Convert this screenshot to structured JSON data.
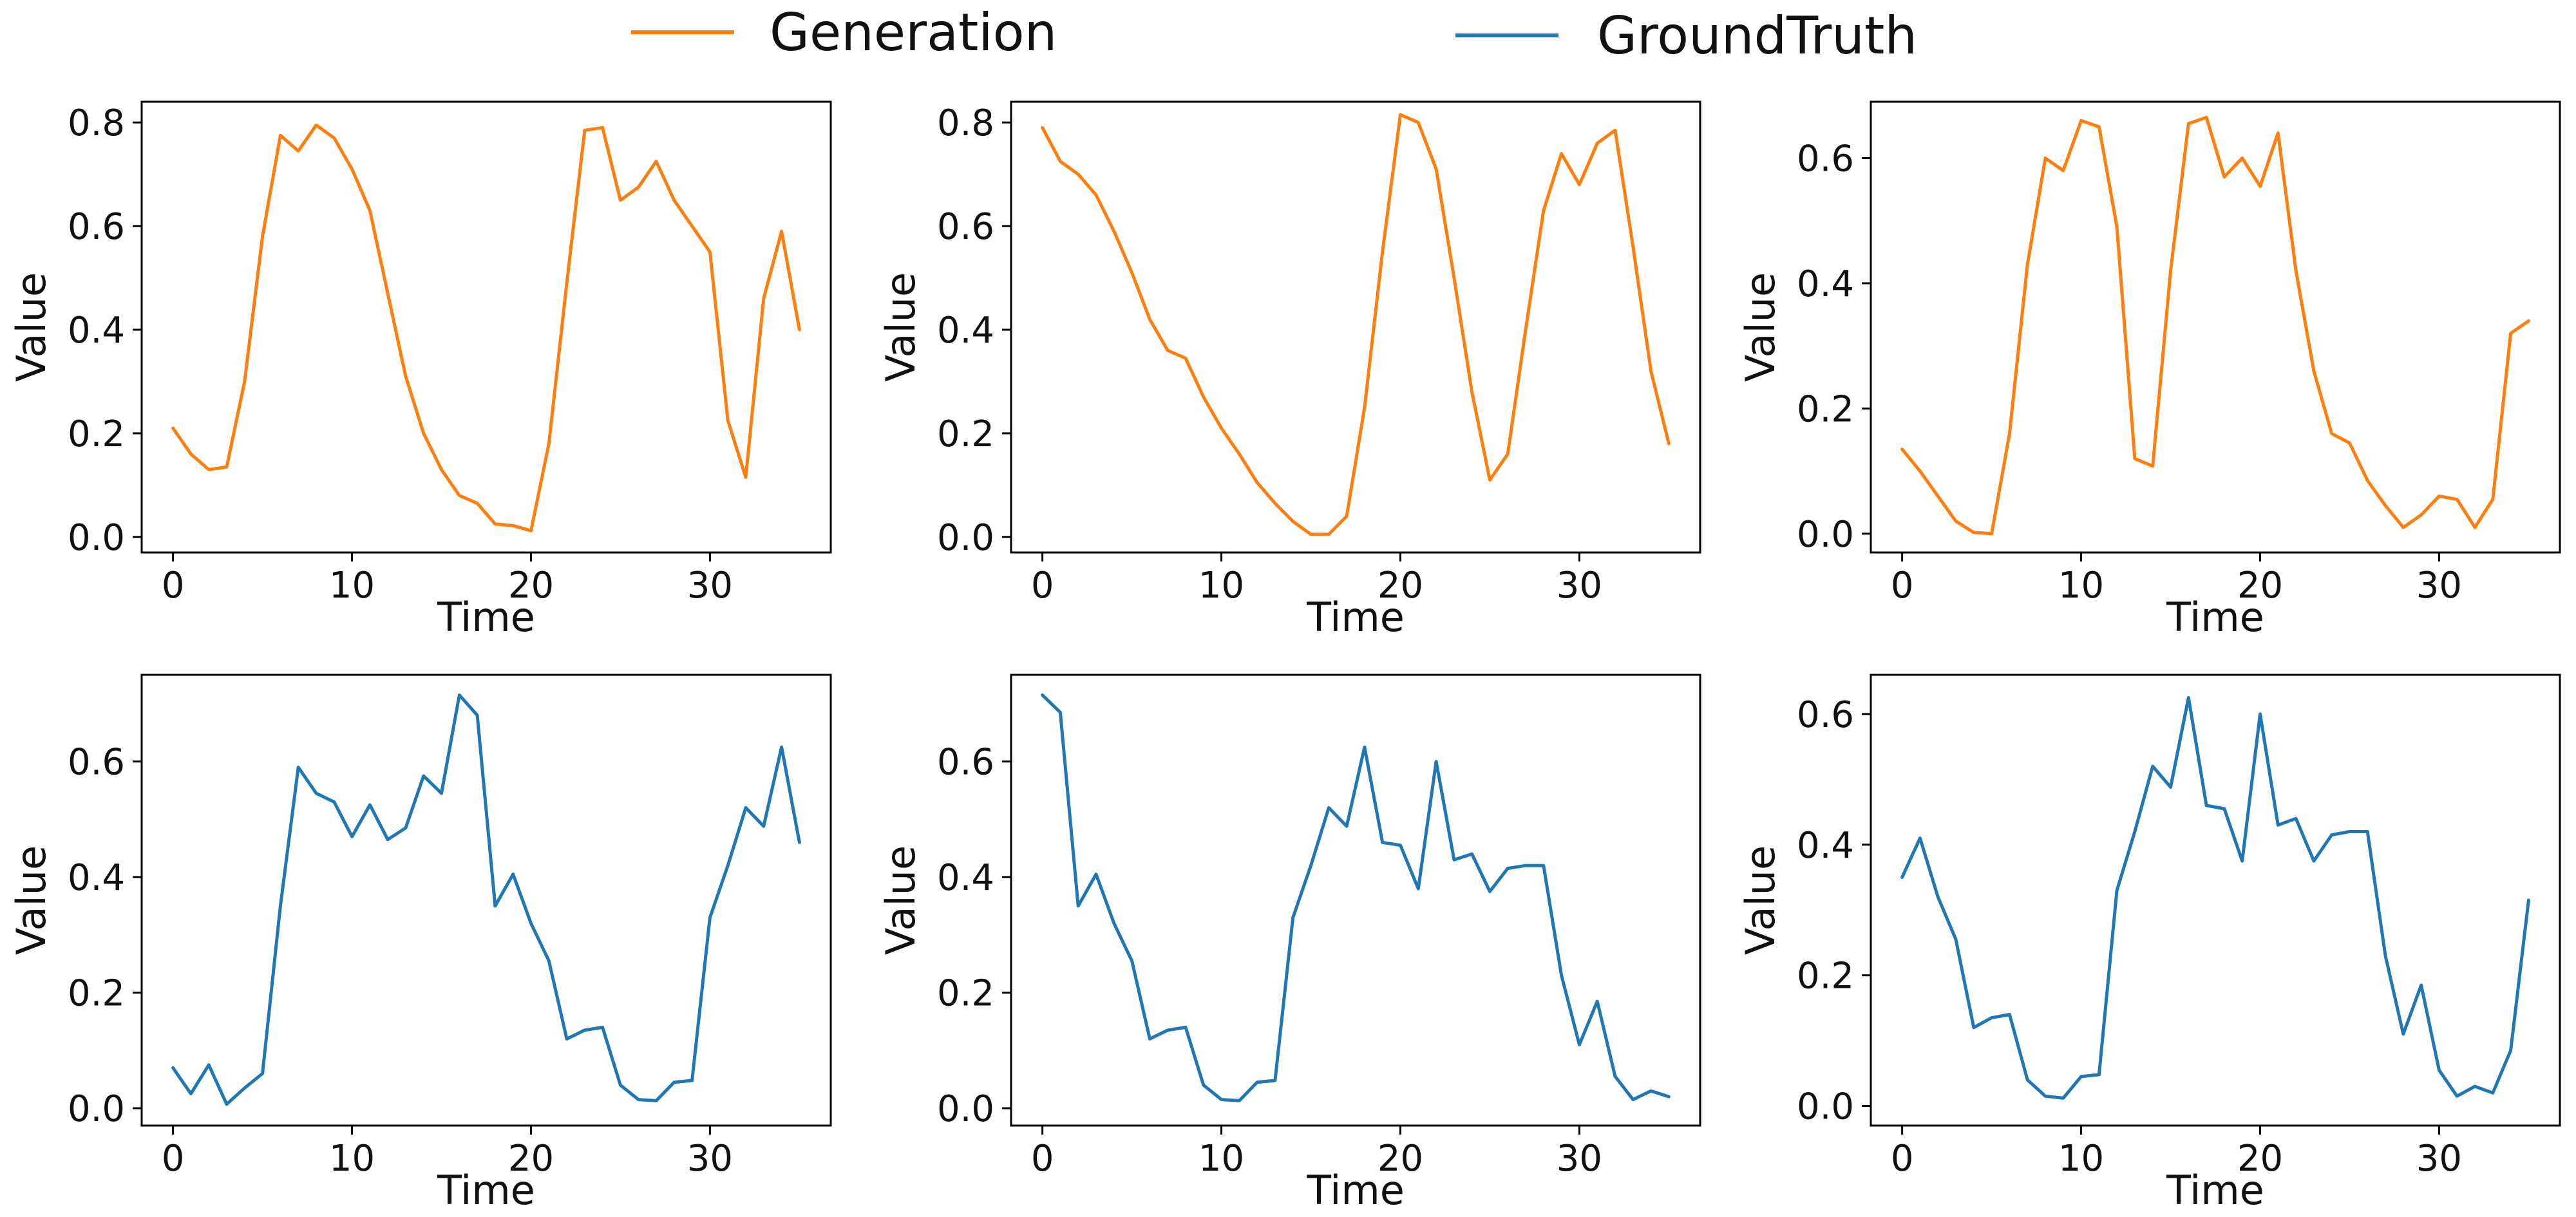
{
  "legend": {
    "generation_label": "Generation",
    "groundtruth_label": "GroundTruth",
    "generation_color": "#ff7f0e",
    "groundtruth_color": "#1f77b4"
  },
  "chart_data": [
    {
      "type": "line",
      "series": [
        {
          "name": "Generation",
          "color": "#ff7f0e",
          "x": [
            0,
            1,
            2,
            3,
            4,
            5,
            6,
            7,
            8,
            9,
            10,
            11,
            12,
            13,
            14,
            15,
            16,
            17,
            18,
            19,
            20,
            21,
            22,
            23,
            24,
            25,
            26,
            27,
            28,
            29,
            30,
            31,
            32,
            33,
            34,
            35
          ],
          "values": [
            0.21,
            0.16,
            0.13,
            0.135,
            0.3,
            0.58,
            0.775,
            0.745,
            0.795,
            0.77,
            0.71,
            0.63,
            0.47,
            0.31,
            0.2,
            0.13,
            0.08,
            0.065,
            0.025,
            0.022,
            0.012,
            0.18,
            0.49,
            0.785,
            0.79,
            0.65,
            0.675,
            0.725,
            0.65,
            0.6,
            0.55,
            0.225,
            0.115,
            0.46,
            0.59,
            0.4
          ]
        }
      ],
      "xlabel": "Time",
      "ylabel": "Value",
      "xlim": [
        -1.75,
        36.75
      ],
      "ylim": [
        -0.03,
        0.84
      ],
      "xticks": [
        0,
        10,
        20,
        30
      ],
      "yticks": [
        0.0,
        0.2,
        0.4,
        0.6,
        0.8
      ],
      "ytick_labels": [
        "0.0",
        "0.2",
        "0.4",
        "0.6",
        "0.8"
      ]
    },
    {
      "type": "line",
      "series": [
        {
          "name": "Generation",
          "color": "#ff7f0e",
          "x": [
            0,
            1,
            2,
            3,
            4,
            5,
            6,
            7,
            8,
            9,
            10,
            11,
            12,
            13,
            14,
            15,
            16,
            17,
            18,
            19,
            20,
            21,
            22,
            23,
            24,
            25,
            26,
            27,
            28,
            29,
            30,
            31,
            32,
            33,
            34,
            35
          ],
          "values": [
            0.79,
            0.725,
            0.7,
            0.66,
            0.59,
            0.51,
            0.42,
            0.36,
            0.345,
            0.27,
            0.21,
            0.16,
            0.105,
            0.065,
            0.03,
            0.005,
            0.005,
            0.04,
            0.25,
            0.55,
            0.815,
            0.8,
            0.71,
            0.5,
            0.28,
            0.11,
            0.16,
            0.4,
            0.63,
            0.74,
            0.68,
            0.76,
            0.785,
            0.56,
            0.32,
            0.18
          ]
        }
      ],
      "xlabel": "Time",
      "ylabel": "Value",
      "xlim": [
        -1.75,
        36.75
      ],
      "ylim": [
        -0.03,
        0.84
      ],
      "xticks": [
        0,
        10,
        20,
        30
      ],
      "yticks": [
        0.0,
        0.2,
        0.4,
        0.6,
        0.8
      ],
      "ytick_labels": [
        "0.0",
        "0.2",
        "0.4",
        "0.6",
        "0.8"
      ]
    },
    {
      "type": "line",
      "series": [
        {
          "name": "Generation",
          "color": "#ff7f0e",
          "x": [
            0,
            1,
            2,
            3,
            4,
            5,
            6,
            7,
            8,
            9,
            10,
            11,
            12,
            13,
            14,
            15,
            16,
            17,
            18,
            19,
            20,
            21,
            22,
            23,
            24,
            25,
            26,
            27,
            28,
            29,
            30,
            31,
            32,
            33,
            34,
            35
          ],
          "values": [
            0.135,
            0.1,
            0.06,
            0.02,
            0.002,
            0.0,
            0.16,
            0.43,
            0.6,
            0.58,
            0.66,
            0.65,
            0.49,
            0.12,
            0.108,
            0.42,
            0.655,
            0.665,
            0.57,
            0.6,
            0.555,
            0.64,
            0.42,
            0.26,
            0.16,
            0.145,
            0.085,
            0.045,
            0.01,
            0.03,
            0.06,
            0.055,
            0.01,
            0.055,
            0.32,
            0.34
          ]
        }
      ],
      "xlabel": "Time",
      "ylabel": "Value",
      "xlim": [
        -1.75,
        36.75
      ],
      "ylim": [
        -0.03,
        0.69
      ],
      "xticks": [
        0,
        10,
        20,
        30
      ],
      "yticks": [
        0.0,
        0.2,
        0.4,
        0.6
      ],
      "ytick_labels": [
        "0.0",
        "0.2",
        "0.4",
        "0.6"
      ]
    },
    {
      "type": "line",
      "series": [
        {
          "name": "GroundTruth",
          "color": "#1f77b4",
          "x": [
            0,
            1,
            2,
            3,
            4,
            5,
            6,
            7,
            8,
            9,
            10,
            11,
            12,
            13,
            14,
            15,
            16,
            17,
            18,
            19,
            20,
            21,
            22,
            23,
            24,
            25,
            26,
            27,
            28,
            29,
            30,
            31,
            32,
            33,
            34,
            35
          ],
          "values": [
            0.07,
            0.025,
            0.075,
            0.007,
            0.035,
            0.06,
            0.35,
            0.59,
            0.545,
            0.53,
            0.47,
            0.525,
            0.465,
            0.485,
            0.575,
            0.545,
            0.715,
            0.68,
            0.35,
            0.405,
            0.32,
            0.255,
            0.12,
            0.135,
            0.14,
            0.04,
            0.015,
            0.013,
            0.045,
            0.048,
            0.33,
            0.42,
            0.52,
            0.488,
            0.625,
            0.46
          ]
        }
      ],
      "xlabel": "Time",
      "ylabel": "Value",
      "xlim": [
        -1.75,
        36.75
      ],
      "ylim": [
        -0.03,
        0.75
      ],
      "xticks": [
        0,
        10,
        20,
        30
      ],
      "yticks": [
        0.0,
        0.2,
        0.4,
        0.6
      ],
      "ytick_labels": [
        "0.0",
        "0.2",
        "0.4",
        "0.6"
      ]
    },
    {
      "type": "line",
      "series": [
        {
          "name": "GroundTruth",
          "color": "#1f77b4",
          "x": [
            0,
            1,
            2,
            3,
            4,
            5,
            6,
            7,
            8,
            9,
            10,
            11,
            12,
            13,
            14,
            15,
            16,
            17,
            18,
            19,
            20,
            21,
            22,
            23,
            24,
            25,
            26,
            27,
            28,
            29,
            30,
            31,
            32,
            33,
            34,
            35
          ],
          "values": [
            0.715,
            0.685,
            0.35,
            0.405,
            0.32,
            0.255,
            0.12,
            0.135,
            0.14,
            0.04,
            0.015,
            0.013,
            0.045,
            0.048,
            0.33,
            0.42,
            0.52,
            0.488,
            0.625,
            0.46,
            0.455,
            0.38,
            0.6,
            0.43,
            0.44,
            0.375,
            0.415,
            0.42,
            0.42,
            0.23,
            0.11,
            0.185,
            0.055,
            0.015,
            0.03,
            0.02
          ]
        }
      ],
      "xlabel": "Time",
      "ylabel": "Value",
      "xlim": [
        -1.75,
        36.75
      ],
      "ylim": [
        -0.03,
        0.75
      ],
      "xticks": [
        0,
        10,
        20,
        30
      ],
      "yticks": [
        0.0,
        0.2,
        0.4,
        0.6
      ],
      "ytick_labels": [
        "0.0",
        "0.2",
        "0.4",
        "0.6"
      ]
    },
    {
      "type": "line",
      "series": [
        {
          "name": "GroundTruth",
          "color": "#1f77b4",
          "x": [
            0,
            1,
            2,
            3,
            4,
            5,
            6,
            7,
            8,
            9,
            10,
            11,
            12,
            13,
            14,
            15,
            16,
            17,
            18,
            19,
            20,
            21,
            22,
            23,
            24,
            25,
            26,
            27,
            28,
            29,
            30,
            31,
            32,
            33,
            34,
            35
          ],
          "values": [
            0.35,
            0.41,
            0.32,
            0.255,
            0.12,
            0.135,
            0.14,
            0.04,
            0.015,
            0.012,
            0.045,
            0.048,
            0.33,
            0.42,
            0.52,
            0.488,
            0.625,
            0.46,
            0.455,
            0.375,
            0.6,
            0.43,
            0.44,
            0.375,
            0.415,
            0.42,
            0.42,
            0.23,
            0.11,
            0.185,
            0.055,
            0.015,
            0.03,
            0.02,
            0.085,
            0.315
          ]
        }
      ],
      "xlabel": "Time",
      "ylabel": "Value",
      "xlim": [
        -1.75,
        36.75
      ],
      "ylim": [
        -0.03,
        0.66
      ],
      "xticks": [
        0,
        10,
        20,
        30
      ],
      "yticks": [
        0.0,
        0.2,
        0.4,
        0.6
      ],
      "ytick_labels": [
        "0.0",
        "0.2",
        "0.4",
        "0.6"
      ]
    }
  ]
}
